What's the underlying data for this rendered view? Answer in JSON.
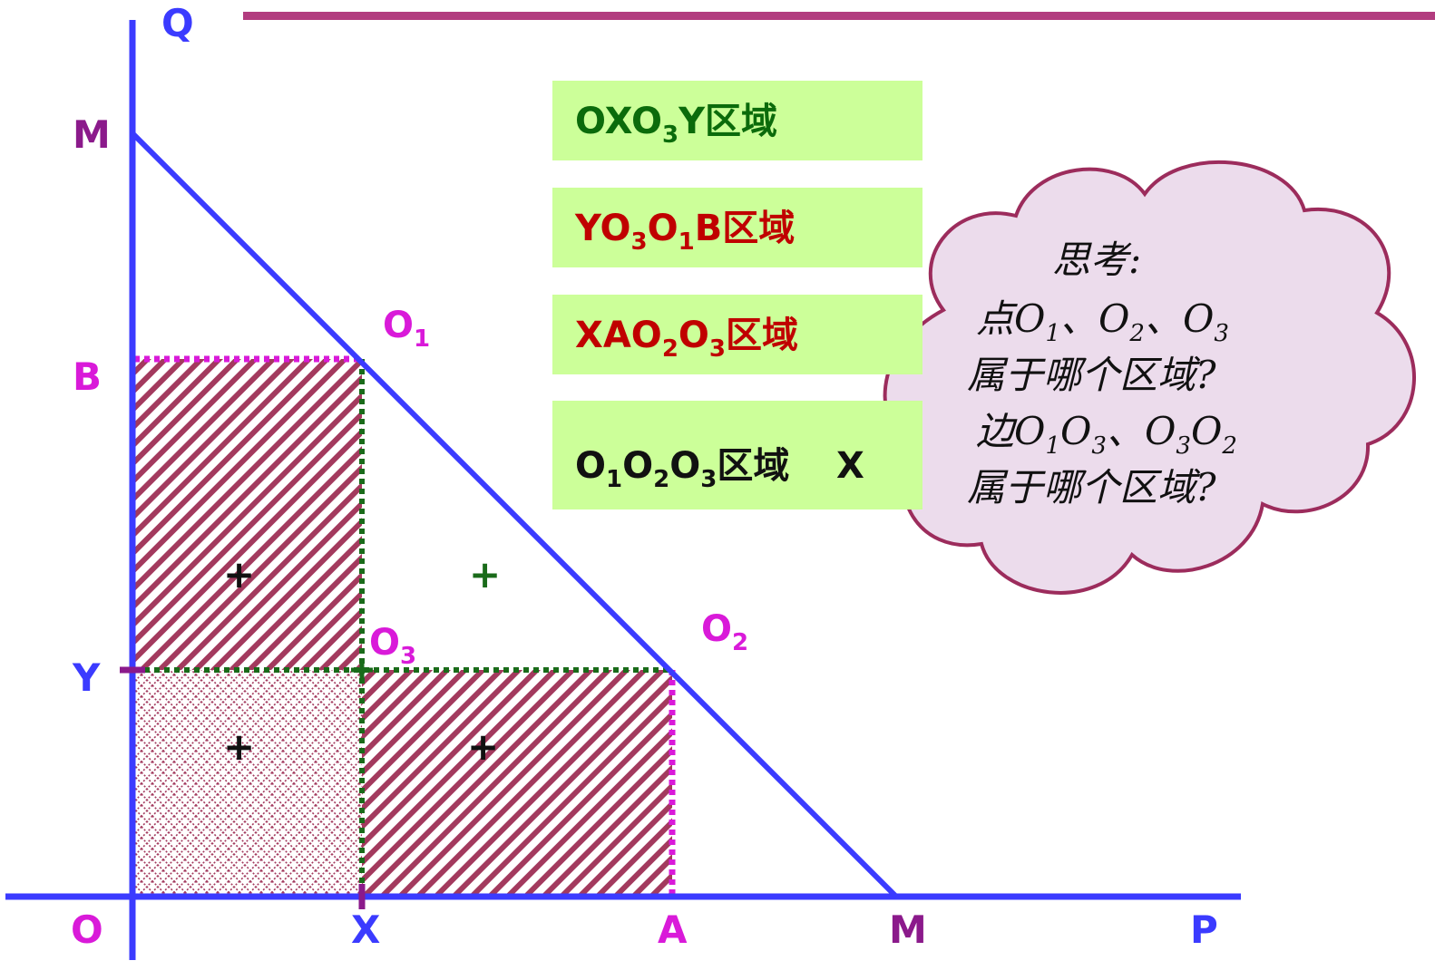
{
  "colors": {
    "axis": "#3b3bff",
    "budget_line": "#3b3bff",
    "magenta": "#d91ad9",
    "purple": "#8b1a8b",
    "hatch": "#a33a5e",
    "green_dash": "#1a6b1a",
    "box_fill": "#ccff99",
    "dark_green": "#0b6b0b",
    "dark_red": "#c00000",
    "cloud_fill": "#ecdcec",
    "cloud_stroke": "#9c2c5c",
    "top_bar": "#b23c7f"
  },
  "axis_labels": {
    "Q": "Q",
    "P": "P",
    "O": "O",
    "M_top": "M",
    "M_right": "M",
    "B": "B",
    "Y": "Y",
    "X": "X",
    "A": "A"
  },
  "point_labels": {
    "o1": {
      "main": "O",
      "sub": "1"
    },
    "o2": {
      "main": "O",
      "sub": "2"
    },
    "o3": {
      "main": "O",
      "sub": "3"
    }
  },
  "plus_signs": {
    "tl": "+",
    "bl": "+",
    "br": "+",
    "white": "+"
  },
  "legend_boxes": [
    {
      "parts": [
        {
          "t": "OXO"
        },
        {
          "t": "3",
          "sub": true
        },
        {
          "t": "Y区域"
        }
      ],
      "color": "#0b6b0b"
    },
    {
      "parts": [
        {
          "t": "YO"
        },
        {
          "t": "3",
          "sub": true
        },
        {
          "t": "O"
        },
        {
          "t": "1",
          "sub": true
        },
        {
          "t": "B区域"
        }
      ],
      "color": "#c00000"
    },
    {
      "parts": [
        {
          "t": "XAO"
        },
        {
          "t": "2",
          "sub": true
        },
        {
          "t": "O"
        },
        {
          "t": "3",
          "sub": true
        },
        {
          "t": "区域"
        }
      ],
      "color": "#c00000"
    },
    {
      "parts": [
        {
          "t": "O"
        },
        {
          "t": "1",
          "sub": true
        },
        {
          "t": "O"
        },
        {
          "t": "2",
          "sub": true
        },
        {
          "t": "O"
        },
        {
          "t": "3",
          "sub": true
        },
        {
          "t": "区域"
        }
      ],
      "color": "#111111",
      "mark": "X"
    }
  ],
  "thinking": {
    "title": "思考:",
    "lines": [
      [
        {
          "t": "点O"
        },
        {
          "t": "1",
          "sub": true
        },
        {
          "t": "、O"
        },
        {
          "t": "2",
          "sub": true
        },
        {
          "t": "、O"
        },
        {
          "t": "3",
          "sub": true
        }
      ],
      [
        {
          "t": "属于哪个区域?"
        }
      ],
      [
        {
          "t": "边O"
        },
        {
          "t": "1",
          "sub": true
        },
        {
          "t": "O"
        },
        {
          "t": "3",
          "sub": true
        },
        {
          "t": "、O"
        },
        {
          "t": "3",
          "sub": true
        },
        {
          "t": "O"
        },
        {
          "t": "2",
          "sub": true
        }
      ],
      [
        {
          "t": "属于哪个区域?"
        }
      ]
    ]
  }
}
